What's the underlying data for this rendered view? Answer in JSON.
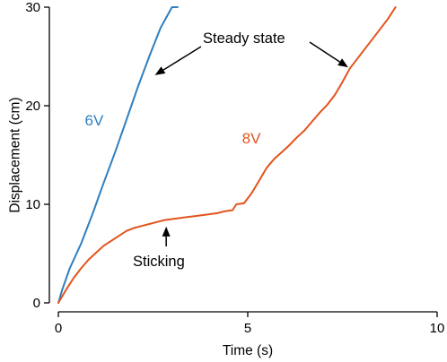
{
  "chart_data": {
    "type": "line",
    "xlabel": "Time (s)",
    "ylabel": "Displacement (cm)",
    "xlim": [
      0,
      10
    ],
    "ylim": [
      0,
      30
    ],
    "xticks": [
      0,
      5,
      10
    ],
    "yticks": [
      0,
      10,
      20,
      30
    ],
    "grid": false,
    "legend": "none",
    "series": [
      {
        "name": "6V",
        "color": "#2d7fc1",
        "x": [
          0,
          0.1,
          0.3,
          0.6,
          0.9,
          1.2,
          1.5,
          1.8,
          2.1,
          2.4,
          2.7,
          3.0,
          3.15
        ],
        "y": [
          0,
          1.3,
          3.5,
          6.0,
          9.0,
          12.2,
          15.3,
          18.6,
          21.9,
          25.0,
          27.9,
          30.0,
          30.0
        ]
      },
      {
        "name": "8V",
        "color": "#e3531c",
        "x": [
          0,
          0.2,
          0.4,
          0.6,
          0.8,
          1.0,
          1.2,
          1.4,
          1.6,
          1.8,
          2.0,
          2.2,
          2.4,
          2.6,
          2.8,
          3.0,
          3.2,
          3.4,
          3.6,
          3.8,
          4.0,
          4.2,
          4.4,
          4.6,
          4.7,
          4.9,
          5.1,
          5.3,
          5.5,
          5.7,
          5.9,
          6.1,
          6.3,
          6.5,
          6.7,
          6.9,
          7.1,
          7.3,
          7.5,
          7.7,
          7.9,
          8.1,
          8.3,
          8.5,
          8.7,
          8.9
        ],
        "y": [
          0,
          1.3,
          2.5,
          3.5,
          4.4,
          5.1,
          5.8,
          6.3,
          6.8,
          7.3,
          7.6,
          7.8,
          8.0,
          8.2,
          8.4,
          8.5,
          8.6,
          8.7,
          8.8,
          8.9,
          9.0,
          9.1,
          9.3,
          9.4,
          10.0,
          10.1,
          11.1,
          12.4,
          13.7,
          14.6,
          15.3,
          16.0,
          16.8,
          17.5,
          18.4,
          19.3,
          20.1,
          21.1,
          22.4,
          23.8,
          24.8,
          25.8,
          26.8,
          27.8,
          28.8,
          30.0
        ]
      }
    ],
    "series_labels": [
      "6V",
      "8V"
    ],
    "annotations": [
      {
        "text": "Steady state",
        "targets": [
          [
            2.55,
            23.1
          ],
          [
            7.65,
            23.9
          ]
        ]
      },
      {
        "text": "Sticking",
        "targets": [
          [
            2.8,
            8.1
          ]
        ]
      }
    ]
  }
}
